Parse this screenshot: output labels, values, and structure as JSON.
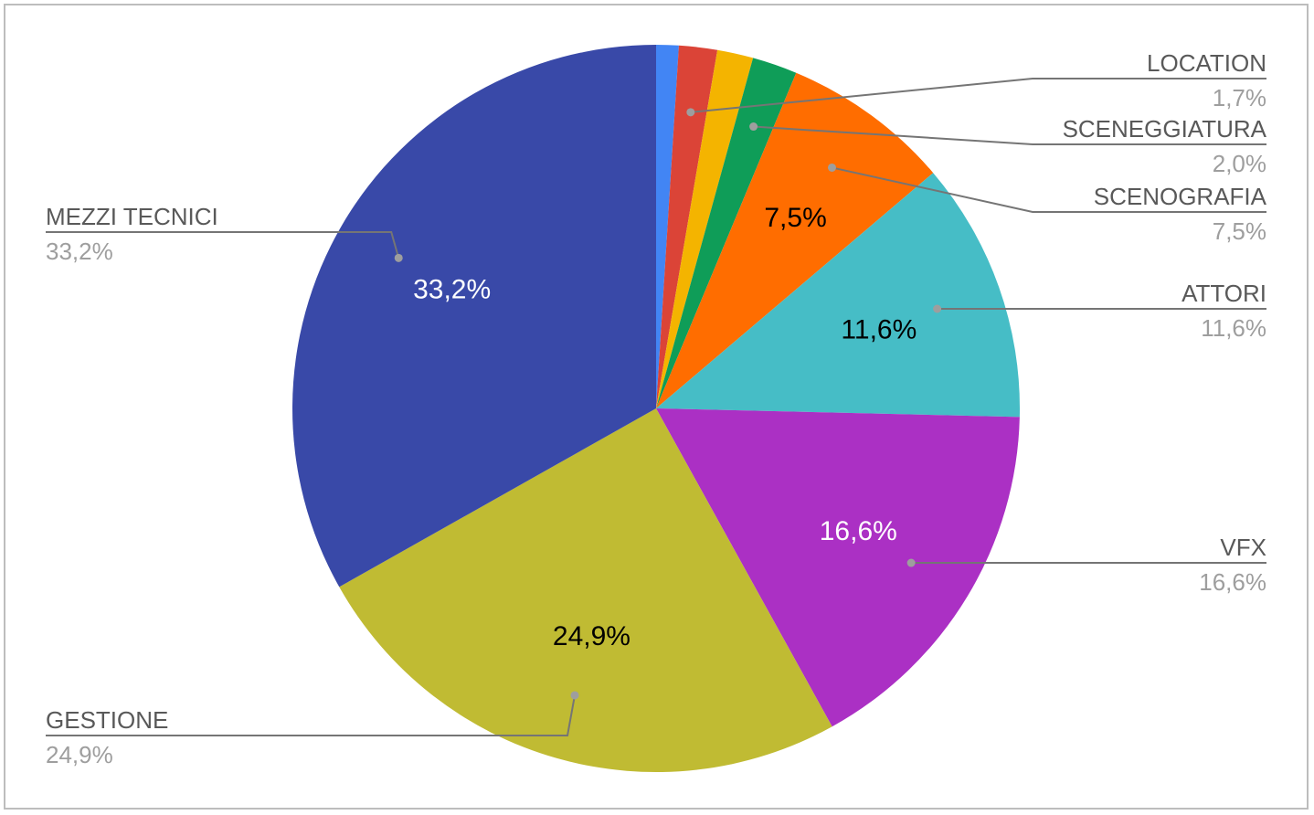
{
  "chart_data": {
    "type": "pie",
    "title": "",
    "start_angle_deg": 0,
    "direction": "clockwise",
    "slices": [
      {
        "label": "",
        "value": 1.0,
        "color": "#4285f4"
      },
      {
        "label": "LOCATION",
        "value": 1.7,
        "color": "#db4437"
      },
      {
        "label": "",
        "value": 1.6,
        "color": "#f4b400"
      },
      {
        "label": "SCENEGGIATURA",
        "value": 2.0,
        "color": "#0f9d58"
      },
      {
        "label": "SCENOGRAFIA",
        "value": 7.5,
        "color": "#ff6d00",
        "inside_label": "7,5%",
        "inside_color": "#000000"
      },
      {
        "label": "ATTORI",
        "value": 11.6,
        "color": "#46bdc6",
        "inside_label": "11,6%",
        "inside_color": "#000000"
      },
      {
        "label": "VFX",
        "value": 16.6,
        "color": "#ab30c4",
        "inside_label": "16,6%",
        "inside_color": "#ffffff"
      },
      {
        "label": "GESTIONE",
        "value": 24.9,
        "color": "#c0bb33",
        "inside_label": "24,9%",
        "inside_color": "#000000"
      },
      {
        "label": "MEZZI TECNICI",
        "value": 33.2,
        "color": "#3949a8",
        "inside_label": "33,2%",
        "inside_color": "#ffffff"
      }
    ],
    "callouts": [
      {
        "name": "LOCATION",
        "pct": "1,7%",
        "slice": 1,
        "side": "right"
      },
      {
        "name": "SCENEGGIATURA",
        "pct": "2,0%",
        "slice": 3,
        "side": "right"
      },
      {
        "name": "SCENOGRAFIA",
        "pct": "7,5%",
        "slice": 4,
        "side": "right"
      },
      {
        "name": "ATTORI",
        "pct": "11,6%",
        "slice": 5,
        "side": "right"
      },
      {
        "name": "VFX",
        "pct": "16,6%",
        "slice": 6,
        "side": "right"
      },
      {
        "name": "GESTIONE",
        "pct": "24,9%",
        "slice": 7,
        "side": "left"
      },
      {
        "name": "MEZZI TECNICI",
        "pct": "33,2%",
        "slice": 8,
        "side": "left"
      }
    ]
  }
}
